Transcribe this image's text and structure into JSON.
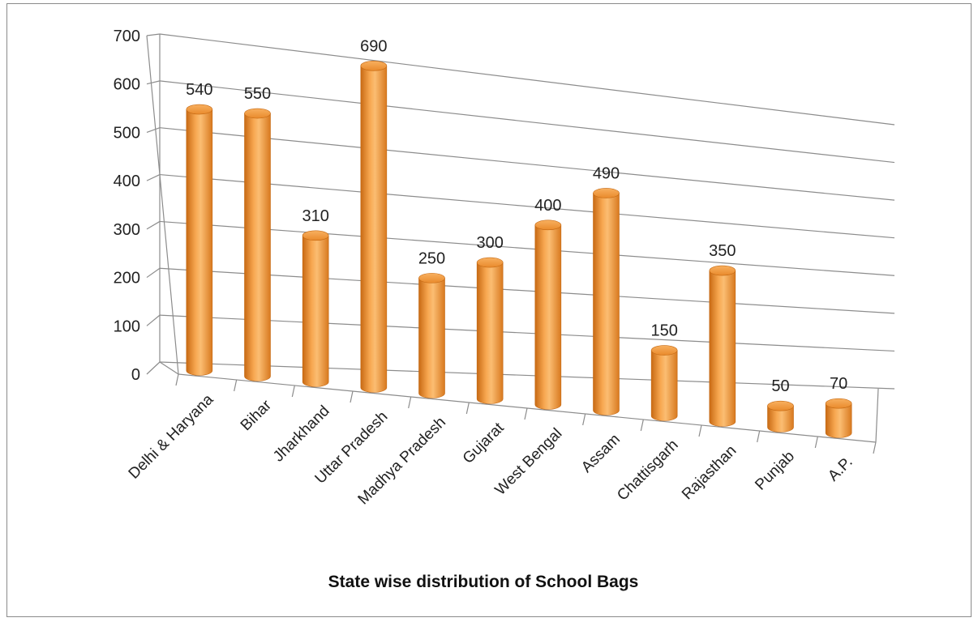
{
  "chart_data": {
    "type": "bar",
    "style": "3d-cylinder",
    "title": "State wise distribution of School Bags",
    "xlabel": "",
    "ylabel": "",
    "ylim": [
      0,
      700
    ],
    "yticks": [
      0,
      100,
      200,
      300,
      400,
      500,
      600,
      700
    ],
    "grid": true,
    "legend": "none",
    "bar_color": "#f39a3c",
    "categories": [
      "Delhi & Haryana",
      "Bihar",
      "Jharkhand",
      "Uttar Pradesh",
      "Madhya Pradesh",
      "Gujarat",
      "West Bengal",
      "Assam",
      "Chattisgarh",
      "Rajasthan",
      "Punjab",
      "A.P."
    ],
    "values": [
      540,
      550,
      310,
      690,
      250,
      300,
      400,
      490,
      150,
      350,
      50,
      70
    ]
  }
}
